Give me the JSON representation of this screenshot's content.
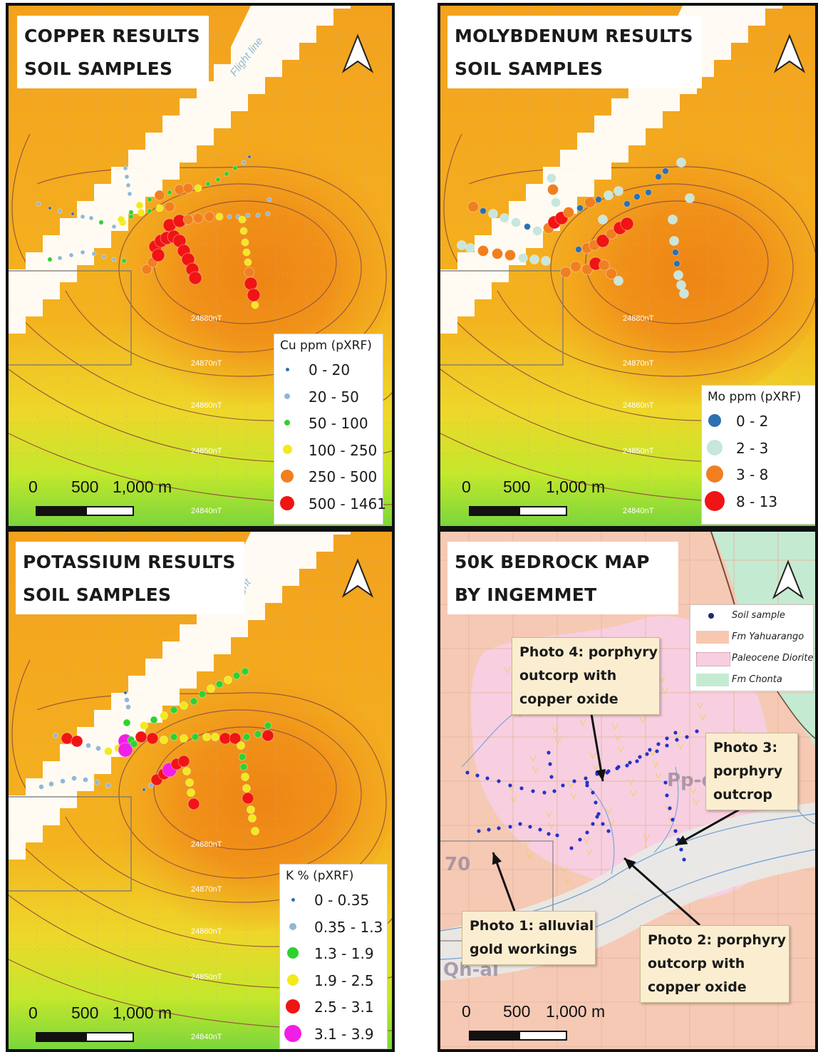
{
  "panels": {
    "copper": {
      "title": [
        "COPPER RESULTS",
        "SOIL SAMPLES"
      ],
      "flight_label": "Flight line",
      "legend_title": "Cu ppm (pXRF)",
      "classes": [
        {
          "label": "0 - 20",
          "color": "#2e6fb0"
        },
        {
          "label": "20 - 50",
          "color": "#8fb8d6"
        },
        {
          "label": "50 - 100",
          "color": "#2fd12f"
        },
        {
          "label": "100 - 250",
          "color": "#f2ea1c"
        },
        {
          "label": "250 - 500",
          "color": "#f07f20"
        },
        {
          "label": "500 - 1461",
          "color": "#f01414"
        }
      ],
      "contours": [
        "24880nT",
        "24870nT",
        "24860nT",
        "24850nT",
        "24840nT"
      ]
    },
    "molybdenum": {
      "title": [
        "MOLYBDENUM  RESULTS",
        "SOIL SAMPLES"
      ],
      "legend_title": "Mo ppm (pXRF)",
      "classes": [
        {
          "label": "0 - 2",
          "color": "#2e6fb0"
        },
        {
          "label": "2 - 3",
          "color": "#c8e6dc"
        },
        {
          "label": "3 - 8",
          "color": "#f07f20"
        },
        {
          "label": "8 - 13",
          "color": "#f01414"
        }
      ],
      "contours": [
        "24880nT",
        "24870nT",
        "24860nT",
        "24850nT",
        "24840nT"
      ]
    },
    "potassium": {
      "title": [
        "POTASSIUM RESULTS",
        "SOIL SAMPLES"
      ],
      "flight_label": "Flight",
      "legend_title": "K % (pXRF)",
      "classes": [
        {
          "label": "0 - 0.35",
          "color": "#2e6fb0"
        },
        {
          "label": "0.35 - 1.3",
          "color": "#8fb8d6"
        },
        {
          "label": "1.3 - 1.9",
          "color": "#2fd12f"
        },
        {
          "label": "1.9 - 2.5",
          "color": "#f2ea1c"
        },
        {
          "label": "2.5 - 3.1",
          "color": "#f01414"
        },
        {
          "label": "3.1 - 3.9",
          "color": "#f01ee6"
        }
      ],
      "contours": [
        "24880nT",
        "24870nT",
        "24860nT",
        "24850nT",
        "24840nT"
      ]
    },
    "bedrock": {
      "title": [
        "50K BEDROCK MAP",
        "BY INGEMMET"
      ],
      "legend": [
        {
          "label": "Soil sample",
          "color": "#2233aa"
        },
        {
          "label": "Fm Yahuarango",
          "color": "#f7c7b0"
        },
        {
          "label": "Paleocene Diorite",
          "color": "#f8cfe0"
        },
        {
          "label": "Fm Chonta",
          "color": "#c5ead2"
        }
      ],
      "callouts": {
        "photo4": [
          "Photo 4:  porphyry",
          "outcorp with",
          "copper oxide"
        ],
        "photo3": [
          "Photo 3:",
          "porphyry",
          "outcrop"
        ],
        "photo1": [
          "Photo 1:  alluvial",
          "gold workings"
        ],
        "photo2": [
          "Photo 2:  porphyry",
          "outcorp with",
          "copper oxide"
        ]
      },
      "geology_labels": [
        "Pp-d",
        "Qh-al",
        "70"
      ]
    }
  },
  "scale_bar": {
    "labels": [
      "0",
      "500",
      "1,000 m"
    ]
  },
  "colors": {
    "orange": "#f29a1c",
    "dark_orange": "#ee8a16",
    "yellow_green": "#c7e82a",
    "green": "#7ad63a",
    "flight_white": "#ffffff",
    "contour": "#9a5a3a"
  }
}
